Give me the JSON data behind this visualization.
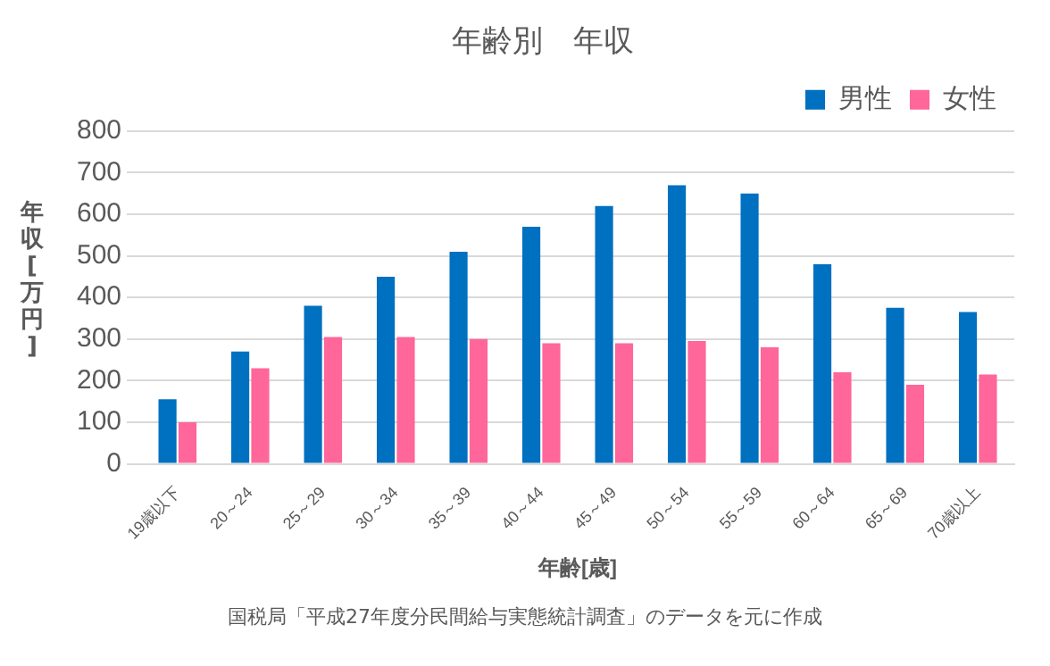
{
  "chart_data": {
    "type": "bar",
    "title": "年齢別　年収",
    "xlabel": "年齢[歳]",
    "ylabel": "年収[万円]",
    "categories": [
      "19歳以下",
      "20～24",
      "25～29",
      "30～34",
      "35～39",
      "40～44",
      "45～49",
      "50～54",
      "55～59",
      "60～64",
      "65～69",
      "70歳以上"
    ],
    "series": [
      {
        "name": "男性",
        "color": "#0070c0",
        "values": [
          155,
          270,
          380,
          450,
          510,
          570,
          620,
          670,
          650,
          480,
          375,
          365
        ]
      },
      {
        "name": "女性",
        "color": "#ff6699",
        "values": [
          100,
          230,
          305,
          305,
          300,
          290,
          290,
          295,
          280,
          220,
          190,
          215
        ]
      }
    ],
    "ylim": [
      0,
      800
    ],
    "yticks": [
      0,
      100,
      200,
      300,
      400,
      500,
      600,
      700,
      800
    ],
    "grid": "y",
    "legend": "top right",
    "annotations": [
      "国税局「平成27年度分民間給与実態統計調査」のデータを元に作成"
    ]
  }
}
